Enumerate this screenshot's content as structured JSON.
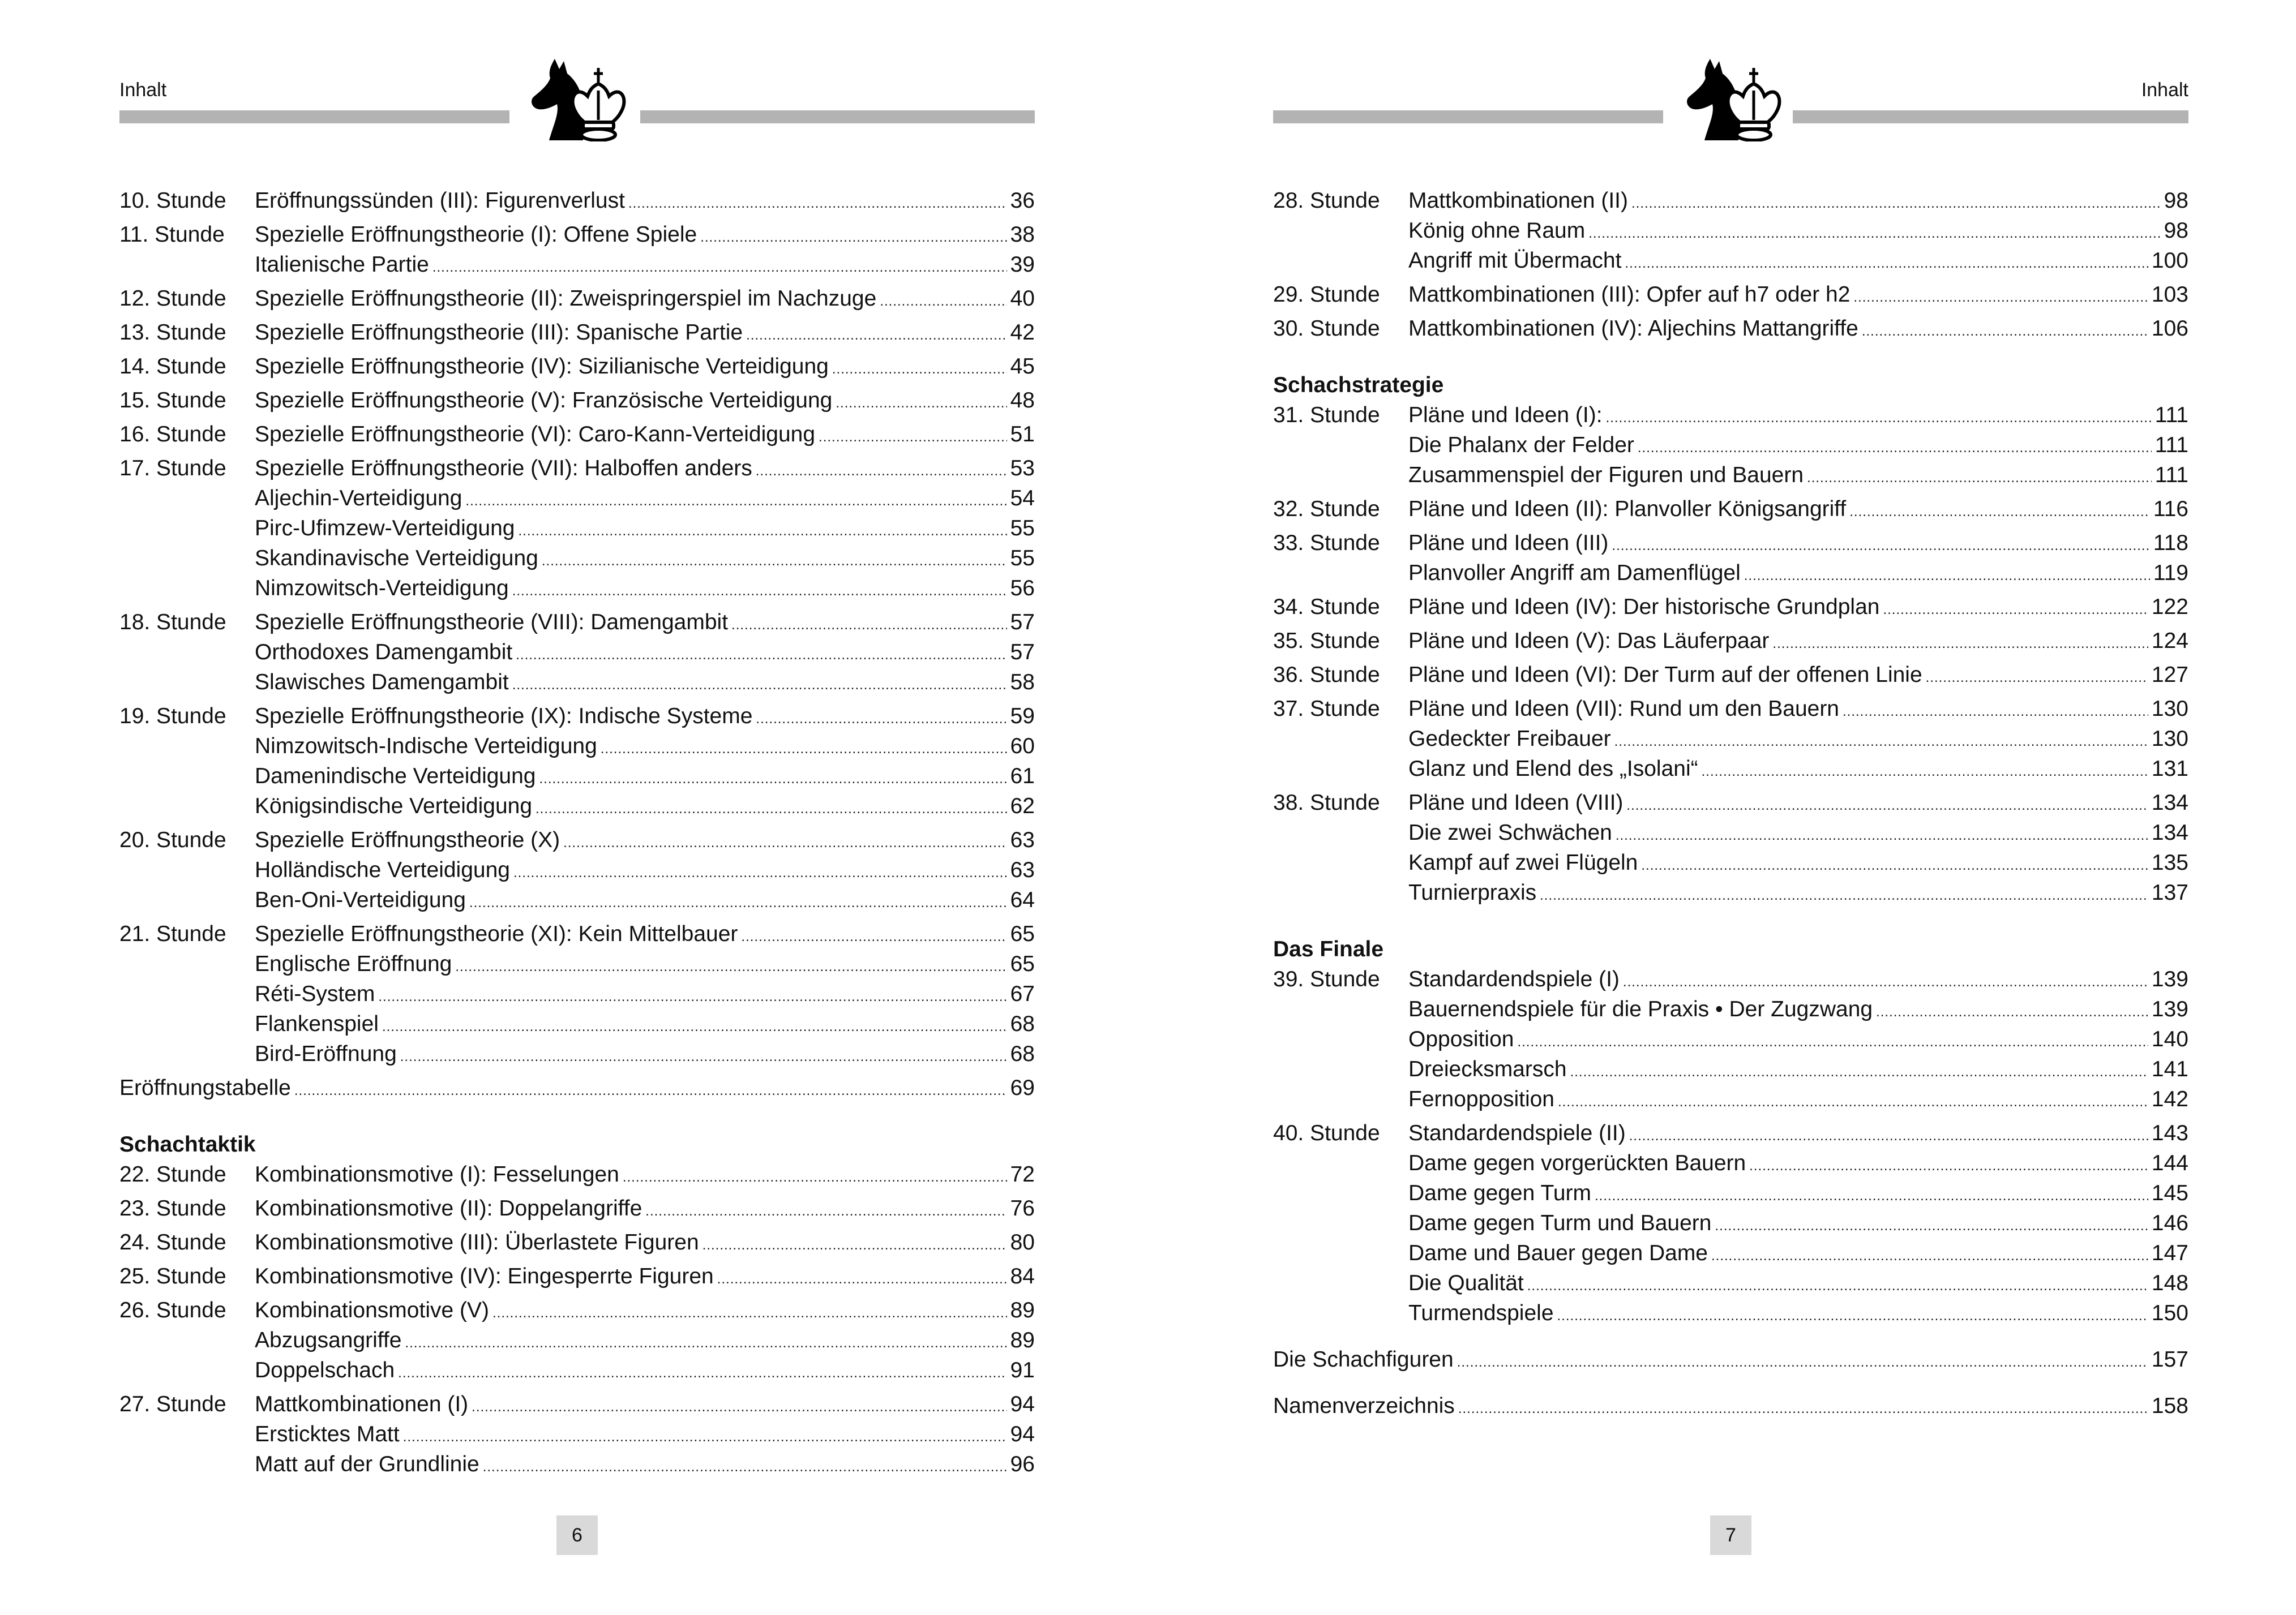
{
  "pages": [
    {
      "running_head": "Inhalt",
      "folio": "6",
      "groups": [
        {
          "items": [
            {
              "type": "stunde",
              "num": "10. Stunde",
              "title": "Eröffnungssünden (III): Figurenverlust",
              "page": "36"
            },
            {
              "type": "stunde",
              "num": "11. Stunde",
              "title": "Spezielle Eröffnungstheorie (I): Offene Spiele",
              "page": "38"
            },
            {
              "type": "sub",
              "title": "Italienische Partie",
              "page": "39"
            },
            {
              "type": "stunde",
              "num": "12. Stunde",
              "title": "Spezielle Eröffnungstheorie (II): Zweispringerspiel im Nachzuge",
              "page": "40"
            },
            {
              "type": "stunde",
              "num": "13. Stunde",
              "title": "Spezielle Eröffnungstheorie (III): Spanische Partie",
              "page": "42"
            },
            {
              "type": "stunde",
              "num": "14. Stunde",
              "title": "Spezielle Eröffnungstheorie (IV): Sizilianische Verteidigung",
              "page": "45"
            },
            {
              "type": "stunde",
              "num": "15. Stunde",
              "title": "Spezielle Eröffnungstheorie (V): Französische Verteidigung",
              "page": "48"
            },
            {
              "type": "stunde",
              "num": "16. Stunde",
              "title": "Spezielle Eröffnungstheorie (VI): Caro-Kann-Verteidigung",
              "page": "51"
            },
            {
              "type": "stunde",
              "num": "17. Stunde",
              "title": "Spezielle Eröffnungstheorie (VII): Halboffen anders",
              "page": "53"
            },
            {
              "type": "sub",
              "title": "Aljechin-Verteidigung",
              "page": "54"
            },
            {
              "type": "sub",
              "title": "Pirc-Ufimzew-Verteidigung",
              "page": "55"
            },
            {
              "type": "sub",
              "title": "Skandinavische Verteidigung",
              "page": "55"
            },
            {
              "type": "sub",
              "title": "Nimzowitsch-Verteidigung",
              "page": "56"
            },
            {
              "type": "stunde",
              "num": "18. Stunde",
              "title": "Spezielle Eröffnungstheorie (VIII): Damengambit",
              "page": "57"
            },
            {
              "type": "sub",
              "title": "Orthodoxes Damengambit",
              "page": "57"
            },
            {
              "type": "sub",
              "title": "Slawisches Damengambit",
              "page": "58"
            },
            {
              "type": "stunde",
              "num": "19. Stunde",
              "title": "Spezielle Eröffnungstheorie (IX): Indische Systeme",
              "page": "59"
            },
            {
              "type": "sub",
              "title": "Nimzowitsch-Indische Verteidigung",
              "page": "60"
            },
            {
              "type": "sub",
              "title": "Damenindische Verteidigung",
              "page": "61"
            },
            {
              "type": "sub",
              "title": "Königsindische Verteidigung",
              "page": "62"
            },
            {
              "type": "stunde",
              "num": "20. Stunde",
              "title": "Spezielle Eröffnungstheorie (X)",
              "page": "63"
            },
            {
              "type": "sub",
              "title": "Holländische Verteidigung",
              "page": "63"
            },
            {
              "type": "sub",
              "title": "Ben-Oni-Verteidigung",
              "page": "64"
            },
            {
              "type": "stunde",
              "num": "21. Stunde",
              "title": "Spezielle Eröffnungstheorie (XI): Kein Mittelbauer",
              "page": "65"
            },
            {
              "type": "sub",
              "title": "Englische Eröffnung",
              "page": "65"
            },
            {
              "type": "sub",
              "title": "Réti-System",
              "page": "67"
            },
            {
              "type": "sub",
              "title": "Flankenspiel",
              "page": "68"
            },
            {
              "type": "sub",
              "title": "Bird-Eröffnung",
              "page": "68"
            },
            {
              "type": "plain",
              "title": "Eröffnungstabelle",
              "page": "69"
            }
          ]
        },
        {
          "section": "Schachtaktik",
          "items": [
            {
              "type": "stunde",
              "num": "22. Stunde",
              "title": "Kombinationsmotive (I): Fesselungen",
              "page": "72"
            },
            {
              "type": "stunde",
              "num": "23. Stunde",
              "title": "Kombinationsmotive (II): Doppelangriffe",
              "page": "76"
            },
            {
              "type": "stunde",
              "num": "24. Stunde",
              "title": "Kombinationsmotive (III): Überlastete Figuren",
              "page": "80"
            },
            {
              "type": "stunde",
              "num": "25. Stunde",
              "title": "Kombinationsmotive (IV): Eingesperrte Figuren",
              "page": "84"
            },
            {
              "type": "stunde",
              "num": "26. Stunde",
              "title": "Kombinationsmotive (V)",
              "page": "89"
            },
            {
              "type": "sub",
              "title": "Abzugsangriffe",
              "page": "89"
            },
            {
              "type": "sub",
              "title": "Doppelschach",
              "page": "91"
            },
            {
              "type": "stunde",
              "num": "27. Stunde",
              "title": "Mattkombinationen (I)",
              "page": "94"
            },
            {
              "type": "sub",
              "title": "Ersticktes Matt",
              "page": "94"
            },
            {
              "type": "sub",
              "title": "Matt auf der Grundlinie",
              "page": "96"
            }
          ]
        }
      ]
    },
    {
      "running_head": "Inhalt",
      "folio": "7",
      "groups": [
        {
          "items": [
            {
              "type": "stunde",
              "num": "28. Stunde",
              "title": "Mattkombinationen (II)",
              "page": "98"
            },
            {
              "type": "sub",
              "title": "König ohne Raum",
              "page": "98"
            },
            {
              "type": "sub",
              "title": "Angriff mit Übermacht",
              "page": "100"
            },
            {
              "type": "stunde",
              "num": "29. Stunde",
              "title": "Mattkombinationen (III): Opfer auf h7 oder h2",
              "page": "103"
            },
            {
              "type": "stunde",
              "num": "30. Stunde",
              "title": "Mattkombinationen (IV): Aljechins Mattangriffe",
              "page": "106"
            }
          ]
        },
        {
          "section": "Schachstrategie",
          "items": [
            {
              "type": "stunde",
              "num": "31. Stunde",
              "title": "Pläne und Ideen (I):",
              "page": "111"
            },
            {
              "type": "sub",
              "title": "Die Phalanx der Felder",
              "page": "111"
            },
            {
              "type": "sub",
              "title": "Zusammenspiel der Figuren und Bauern",
              "page": "111"
            },
            {
              "type": "stunde",
              "num": "32. Stunde",
              "title": "Pläne und Ideen (II): Planvoller Königsangriff",
              "page": "116"
            },
            {
              "type": "stunde",
              "num": "33. Stunde",
              "title": "Pläne und Ideen (III)",
              "page": "118"
            },
            {
              "type": "sub",
              "title": "Planvoller Angriff am Damenflügel",
              "page": "119"
            },
            {
              "type": "stunde",
              "num": "34. Stunde",
              "title": "Pläne und Ideen (IV): Der historische Grundplan",
              "page": "122"
            },
            {
              "type": "stunde",
              "num": "35. Stunde",
              "title": "Pläne und Ideen (V): Das Läuferpaar",
              "page": "124"
            },
            {
              "type": "stunde",
              "num": "36. Stunde",
              "title": "Pläne und Ideen (VI): Der Turm auf der offenen Linie",
              "page": "127"
            },
            {
              "type": "stunde",
              "num": "37. Stunde",
              "title": "Pläne und Ideen (VII): Rund um den Bauern",
              "page": "130"
            },
            {
              "type": "sub",
              "title": "Gedeckter Freibauer",
              "page": "130"
            },
            {
              "type": "sub",
              "title": "Glanz und Elend des „Isolani“",
              "page": "131"
            },
            {
              "type": "stunde",
              "num": "38. Stunde",
              "title": "Pläne und Ideen (VIII)",
              "page": "134"
            },
            {
              "type": "sub",
              "title": "Die zwei Schwächen",
              "page": "134"
            },
            {
              "type": "sub",
              "title": "Kampf auf zwei Flügeln",
              "page": "135"
            },
            {
              "type": "sub",
              "title": "Turnierpraxis",
              "page": "137"
            }
          ]
        },
        {
          "section": "Das Finale",
          "items": [
            {
              "type": "stunde",
              "num": "39. Stunde",
              "title": "Standardendspiele (I)",
              "page": "139"
            },
            {
              "type": "sub",
              "title": "Bauernendspiele für die Praxis • Der Zugzwang",
              "page": "139"
            },
            {
              "type": "sub",
              "title": "Opposition",
              "page": "140"
            },
            {
              "type": "sub",
              "title": "Dreiecksmarsch",
              "page": "141"
            },
            {
              "type": "sub",
              "title": "Fernopposition",
              "page": "142"
            },
            {
              "type": "stunde",
              "num": "40. Stunde",
              "title": "Standardendspiele (II)",
              "page": "143"
            },
            {
              "type": "sub",
              "title": "Dame gegen vorgerückten Bauern",
              "page": "144"
            },
            {
              "type": "sub",
              "title": "Dame gegen Turm",
              "page": "145"
            },
            {
              "type": "sub",
              "title": "Dame gegen Turm und Bauern",
              "page": "146"
            },
            {
              "type": "sub",
              "title": "Dame und Bauer gegen Dame",
              "page": "147"
            },
            {
              "type": "sub",
              "title": "Die Qualität",
              "page": "148"
            },
            {
              "type": "sub",
              "title": "Turmendspiele",
              "page": "150"
            }
          ]
        },
        {
          "items": [
            {
              "type": "plain",
              "title": "Die Schachfiguren",
              "page": "157"
            }
          ]
        },
        {
          "items": [
            {
              "type": "plain",
              "title": "Namenverzeichnis",
              "page": "158"
            }
          ]
        }
      ]
    }
  ],
  "icons": {
    "header_emblem": "chess-knight-and-king-icon"
  },
  "colors": {
    "rule_bar": "#b3b3b3",
    "folio_box": "#d9d9d9"
  }
}
